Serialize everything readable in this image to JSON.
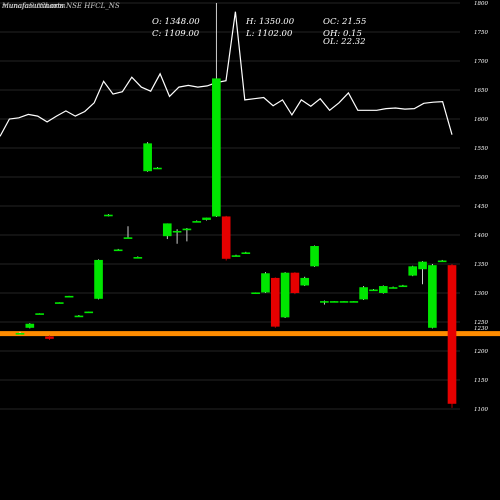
{
  "watermark": "munafasutra.com",
  "title": "MunafaSutra.com",
  "subtitle": "Charts NSE HFCL_NS",
  "ohlc": {
    "o_label": "O: 1348.00",
    "h_label": "H: 1350.00",
    "oc_label": "OC: 21.55",
    "c_label": "C: 1109.00",
    "l_label": "L: 1102.00",
    "oh_label": "OH: 0.15",
    "ol_label": "OL: 22.32"
  },
  "colors": {
    "up": "#00e600",
    "down": "#e60000",
    "neutral": "#00ff00",
    "line": "#ffffff",
    "grid": "#4a4a4a",
    "background": "#000000",
    "support": "#ff8c00"
  },
  "chart_data": {
    "type": "candlestick",
    "ylim": [
      1050,
      1800
    ],
    "grid": true,
    "yticks": [
      {
        "value": 1800,
        "label": "1800"
      },
      {
        "value": 1750,
        "label": "1750"
      },
      {
        "value": 1700,
        "label": "1700"
      },
      {
        "value": 1650,
        "label": "1650"
      },
      {
        "value": 1600,
        "label": "1600"
      },
      {
        "value": 1550,
        "label": "1550"
      },
      {
        "value": 1500,
        "label": "1500"
      },
      {
        "value": 1450,
        "label": "1450"
      },
      {
        "value": 1400,
        "label": "1400"
      },
      {
        "value": 1350,
        "label": "1350"
      },
      {
        "value": 1300,
        "label": "1300"
      },
      {
        "value": 1250,
        "label": "1250"
      },
      {
        "value": 1200,
        "label": "1200"
      },
      {
        "value": 1150,
        "label": "1150"
      },
      {
        "value": 1100,
        "label": "1100"
      }
    ],
    "current_label": "1230",
    "support_level": 1230,
    "candles": [
      {
        "o": 1230,
        "h": 1233,
        "l": 1228,
        "c": 1231,
        "dir": "up"
      },
      {
        "o": 1240,
        "h": 1248,
        "l": 1239,
        "c": 1247,
        "dir": "up"
      },
      {
        "o": 1265,
        "h": 1265,
        "l": 1264,
        "c": 1265,
        "dir": "up"
      },
      {
        "o": 1225,
        "h": 1227,
        "l": 1219,
        "c": 1221,
        "dir": "down"
      },
      {
        "o": 1284,
        "h": 1284,
        "l": 1283,
        "c": 1284,
        "dir": "up"
      },
      {
        "o": 1295,
        "h": 1295,
        "l": 1294,
        "c": 1295,
        "dir": "up"
      },
      {
        "o": 1261,
        "h": 1262,
        "l": 1260,
        "c": 1261,
        "dir": "up"
      },
      {
        "o": 1268,
        "h": 1268,
        "l": 1267,
        "c": 1268,
        "dir": "up"
      },
      {
        "o": 1290,
        "h": 1358,
        "l": 1289,
        "c": 1357,
        "dir": "up"
      },
      {
        "o": 1434,
        "h": 1436,
        "l": 1432,
        "c": 1435,
        "dir": "up"
      },
      {
        "o": 1375,
        "h": 1376,
        "l": 1374,
        "c": 1375,
        "dir": "up"
      },
      {
        "o": 1395,
        "h": 1415,
        "l": 1394,
        "c": 1396,
        "dir": "up"
      },
      {
        "o": 1362,
        "h": 1363,
        "l": 1361,
        "c": 1362,
        "dir": "up"
      },
      {
        "o": 1510,
        "h": 1560,
        "l": 1509,
        "c": 1558,
        "dir": "up"
      },
      {
        "o": 1516,
        "h": 1517,
        "l": 1515,
        "c": 1516,
        "dir": "up"
      },
      {
        "o": 1398,
        "h": 1420,
        "l": 1393,
        "c": 1420,
        "dir": "up"
      },
      {
        "o": 1405,
        "h": 1410,
        "l": 1385,
        "c": 1407,
        "dir": "up"
      },
      {
        "o": 1410,
        "h": 1412,
        "l": 1389,
        "c": 1411,
        "dir": "up"
      },
      {
        "o": 1424,
        "h": 1425,
        "l": 1423,
        "c": 1424,
        "dir": "up"
      },
      {
        "o": 1426,
        "h": 1430,
        "l": 1425,
        "c": 1430,
        "dir": "up"
      },
      {
        "o": 1432,
        "h": 1800,
        "l": 1431,
        "c": 1670,
        "dir": "up"
      },
      {
        "o": 1432,
        "h": 1433,
        "l": 1356,
        "c": 1359,
        "dir": "down"
      },
      {
        "o": 1365,
        "h": 1366,
        "l": 1364,
        "c": 1365,
        "dir": "up"
      },
      {
        "o": 1370,
        "h": 1371,
        "l": 1369,
        "c": 1370,
        "dir": "up"
      },
      {
        "o": 1301,
        "h": 1301,
        "l": 1300,
        "c": 1301,
        "dir": "up"
      },
      {
        "o": 1301,
        "h": 1336,
        "l": 1300,
        "c": 1334,
        "dir": "up"
      },
      {
        "o": 1326,
        "h": 1327,
        "l": 1240,
        "c": 1242,
        "dir": "down"
      },
      {
        "o": 1258,
        "h": 1336,
        "l": 1257,
        "c": 1335,
        "dir": "up"
      },
      {
        "o": 1335,
        "h": 1336,
        "l": 1298,
        "c": 1300,
        "dir": "down"
      },
      {
        "o": 1313,
        "h": 1328,
        "l": 1312,
        "c": 1326,
        "dir": "up"
      },
      {
        "o": 1346,
        "h": 1382,
        "l": 1345,
        "c": 1381,
        "dir": "up"
      },
      {
        "o": 1286,
        "h": 1287,
        "l": 1280,
        "c": 1286,
        "dir": "up"
      },
      {
        "o": 1286,
        "h": 1286,
        "l": 1285,
        "c": 1286,
        "dir": "up"
      },
      {
        "o": 1286,
        "h": 1286,
        "l": 1285,
        "c": 1286,
        "dir": "up"
      },
      {
        "o": 1286,
        "h": 1286,
        "l": 1285,
        "c": 1286,
        "dir": "up"
      },
      {
        "o": 1289,
        "h": 1312,
        "l": 1288,
        "c": 1310,
        "dir": "up"
      },
      {
        "o": 1306,
        "h": 1307,
        "l": 1305,
        "c": 1306,
        "dir": "up"
      },
      {
        "o": 1300,
        "h": 1313,
        "l": 1299,
        "c": 1312,
        "dir": "up"
      },
      {
        "o": 1310,
        "h": 1311,
        "l": 1309,
        "c": 1310,
        "dir": "up"
      },
      {
        "o": 1313,
        "h": 1314,
        "l": 1312,
        "c": 1313,
        "dir": "up"
      },
      {
        "o": 1330,
        "h": 1347,
        "l": 1329,
        "c": 1346,
        "dir": "up"
      },
      {
        "o": 1341,
        "h": 1355,
        "l": 1315,
        "c": 1354,
        "dir": "up"
      },
      {
        "o": 1240,
        "h": 1350,
        "l": 1239,
        "c": 1348,
        "dir": "up"
      },
      {
        "o": 1356,
        "h": 1357,
        "l": 1355,
        "c": 1356,
        "dir": "up"
      },
      {
        "o": 1348,
        "h": 1350,
        "l": 1102,
        "c": 1109,
        "dir": "down"
      }
    ],
    "volume_line": [
      1570,
      1600,
      1602,
      1608,
      1605,
      1595,
      1605,
      1614,
      1605,
      1613,
      1628,
      1665,
      1643,
      1647,
      1672,
      1655,
      1648,
      1678,
      1639,
      1655,
      1658,
      1655,
      1657,
      1663,
      1666,
      1785,
      1633,
      1635,
      1637,
      1623,
      1633,
      1607,
      1633,
      1622,
      1635,
      1615,
      1628,
      1645,
      1615,
      1615,
      1615,
      1618,
      1619,
      1617,
      1618,
      1627,
      1629,
      1630,
      1573
    ]
  }
}
